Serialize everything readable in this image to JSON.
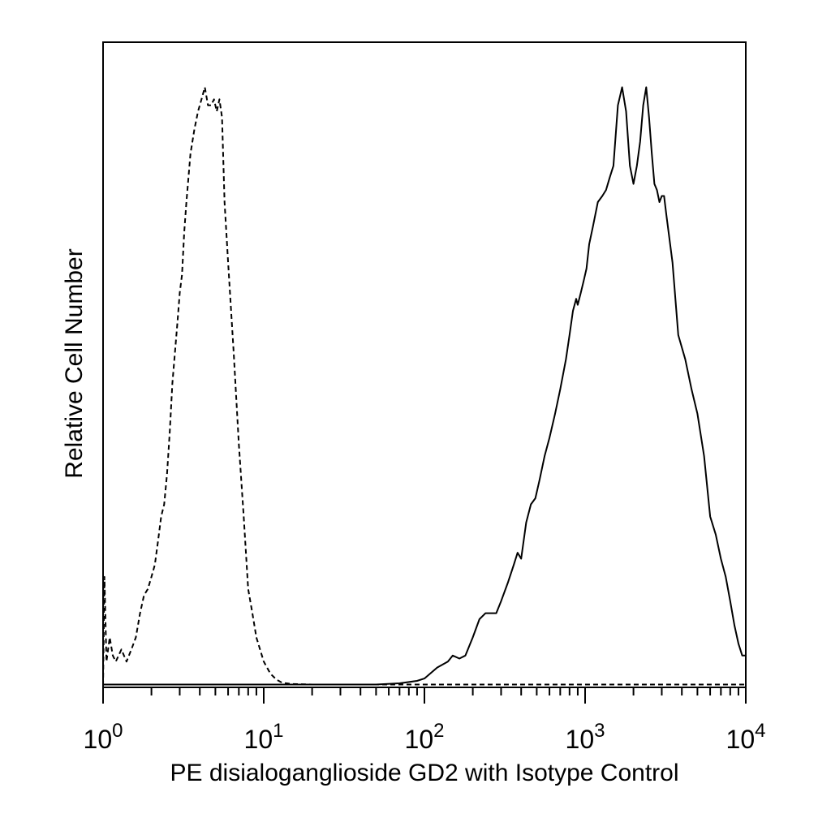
{
  "chart_data": {
    "type": "line",
    "title": "",
    "xlabel": "PE disialoganglioside GD2 with Isotype Control",
    "ylabel": "Relative Cell Number",
    "x_scale": "log",
    "xlim": [
      1,
      10000
    ],
    "ylim": [
      0,
      100
    ],
    "grid": false,
    "legend": "none",
    "x_ticks": [
      {
        "value": 1,
        "base": "10",
        "exp": "0"
      },
      {
        "value": 10,
        "base": "10",
        "exp": "1"
      },
      {
        "value": 100,
        "base": "10",
        "exp": "2"
      },
      {
        "value": 1000,
        "base": "10",
        "exp": "3"
      },
      {
        "value": 10000,
        "base": "10",
        "exp": "4"
      }
    ],
    "series": [
      {
        "style": "dashed",
        "points": [
          [
            1.0,
            0
          ],
          [
            1.02,
            18
          ],
          [
            1.05,
            4
          ],
          [
            1.1,
            8
          ],
          [
            1.15,
            5
          ],
          [
            1.2,
            4
          ],
          [
            1.3,
            6
          ],
          [
            1.4,
            4
          ],
          [
            1.5,
            6
          ],
          [
            1.6,
            8
          ],
          [
            1.7,
            12
          ],
          [
            1.8,
            15
          ],
          [
            1.9,
            16
          ],
          [
            2.0,
            18
          ],
          [
            2.1,
            20
          ],
          [
            2.2,
            24
          ],
          [
            2.3,
            28
          ],
          [
            2.4,
            30
          ],
          [
            2.5,
            35
          ],
          [
            2.6,
            42
          ],
          [
            2.7,
            50
          ],
          [
            2.8,
            55
          ],
          [
            2.9,
            60
          ],
          [
            3.0,
            65
          ],
          [
            3.1,
            68
          ],
          [
            3.2,
            75
          ],
          [
            3.3,
            80
          ],
          [
            3.5,
            88
          ],
          [
            3.7,
            92
          ],
          [
            3.9,
            95
          ],
          [
            4.1,
            97
          ],
          [
            4.3,
            99
          ],
          [
            4.5,
            96
          ],
          [
            4.7,
            96
          ],
          [
            4.9,
            97
          ],
          [
            5.1,
            95
          ],
          [
            5.3,
            97
          ],
          [
            5.5,
            94
          ],
          [
            5.7,
            80
          ],
          [
            6.0,
            70
          ],
          [
            6.5,
            55
          ],
          [
            7.0,
            40
          ],
          [
            7.5,
            28
          ],
          [
            8.0,
            16
          ],
          [
            8.5,
            12
          ],
          [
            9.0,
            8
          ],
          [
            10.0,
            4
          ],
          [
            11.0,
            2
          ],
          [
            12.0,
            1
          ],
          [
            13.0,
            0.5
          ],
          [
            15.0,
            0.3
          ],
          [
            20.0,
            0.2
          ],
          [
            50.0,
            0.2
          ],
          [
            100.0,
            0.2
          ],
          [
            1000.0,
            0.2
          ],
          [
            10000.0,
            0.2
          ]
        ]
      },
      {
        "style": "solid",
        "points": [
          [
            1.0,
            0.2
          ],
          [
            10.0,
            0.2
          ],
          [
            50.0,
            0.2
          ],
          [
            70.0,
            0.4
          ],
          [
            90.0,
            0.8
          ],
          [
            100,
            1.2
          ],
          [
            120,
            3
          ],
          [
            140,
            4
          ],
          [
            150,
            5
          ],
          [
            165,
            4.5
          ],
          [
            180,
            5
          ],
          [
            200,
            8
          ],
          [
            220,
            11
          ],
          [
            240,
            12
          ],
          [
            260,
            12
          ],
          [
            280,
            12
          ],
          [
            300,
            14
          ],
          [
            330,
            17
          ],
          [
            360,
            20
          ],
          [
            380,
            22
          ],
          [
            400,
            21
          ],
          [
            430,
            27
          ],
          [
            460,
            30
          ],
          [
            490,
            31
          ],
          [
            520,
            34
          ],
          [
            560,
            38
          ],
          [
            600,
            41
          ],
          [
            650,
            45
          ],
          [
            700,
            49
          ],
          [
            760,
            54
          ],
          [
            800,
            58
          ],
          [
            840,
            62
          ],
          [
            880,
            64
          ],
          [
            900,
            63
          ],
          [
            940,
            65
          ],
          [
            980,
            67
          ],
          [
            1020,
            69
          ],
          [
            1060,
            73
          ],
          [
            1120,
            76
          ],
          [
            1200,
            80
          ],
          [
            1280,
            81
          ],
          [
            1350,
            82
          ],
          [
            1420,
            84
          ],
          [
            1500,
            86
          ],
          [
            1600,
            96
          ],
          [
            1700,
            99
          ],
          [
            1800,
            95
          ],
          [
            1900,
            86
          ],
          [
            2000,
            83
          ],
          [
            2100,
            86
          ],
          [
            2200,
            90
          ],
          [
            2300,
            96
          ],
          [
            2400,
            99
          ],
          [
            2500,
            94
          ],
          [
            2600,
            88
          ],
          [
            2700,
            83
          ],
          [
            2800,
            82
          ],
          [
            2900,
            80
          ],
          [
            3000,
            81
          ],
          [
            3100,
            81
          ],
          [
            3200,
            78
          ],
          [
            3500,
            70
          ],
          [
            3800,
            58
          ],
          [
            4200,
            54
          ],
          [
            4600,
            49
          ],
          [
            5000,
            45
          ],
          [
            5500,
            38
          ],
          [
            6000,
            28
          ],
          [
            6500,
            25
          ],
          [
            7000,
            21
          ],
          [
            7500,
            18
          ],
          [
            8000,
            14
          ],
          [
            8500,
            10
          ],
          [
            9000,
            7
          ],
          [
            9500,
            5
          ],
          [
            10000,
            5
          ]
        ]
      }
    ]
  }
}
